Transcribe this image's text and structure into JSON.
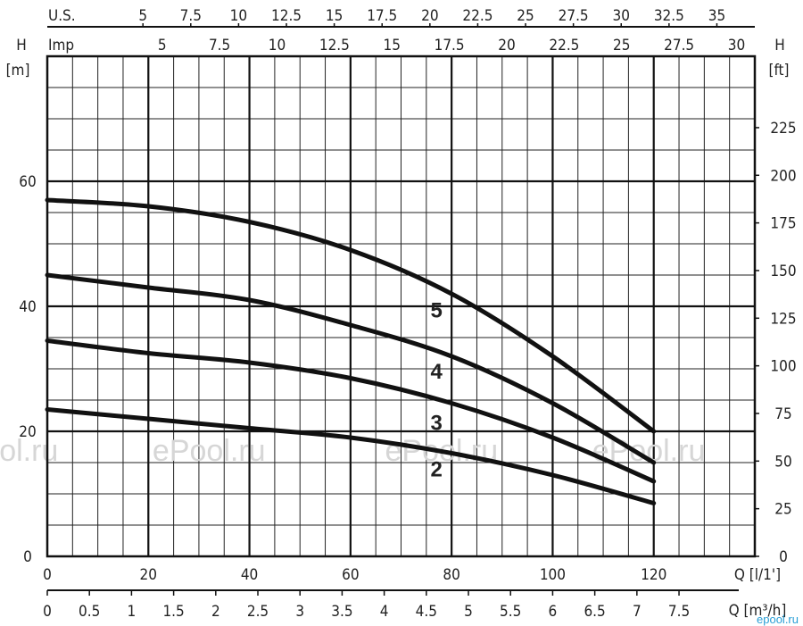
{
  "chart_data": {
    "type": "line",
    "title": "",
    "xlabel": "Q [l/1']",
    "xlim": [
      0,
      140
    ],
    "ylabel_left_symbol": "H",
    "ylabel_left_unit": "[m]",
    "ylim": [
      0,
      80
    ],
    "ylabel_right_symbol": "H",
    "ylabel_right_unit": "[ft]",
    "grid": true,
    "x_ticks": [
      "0",
      "20",
      "40",
      "60",
      "80",
      "100",
      "120"
    ],
    "y_left_ticks": [
      "0",
      "20",
      "40",
      "60"
    ],
    "y_right_ticks": [
      "0",
      "25",
      "50",
      "75",
      "100",
      "125",
      "150",
      "175",
      "200",
      "225"
    ],
    "us_axis": {
      "label": "U.S.",
      "ticks": [
        "5",
        "7.5",
        "10",
        "12.5",
        "15",
        "17.5",
        "20",
        "22.5",
        "25",
        "27.5",
        "30",
        "32.5",
        "35"
      ]
    },
    "imp_axis": {
      "label": "Imp",
      "ticks": [
        "5",
        "7.5",
        "10",
        "12.5",
        "15",
        "17.5",
        "20",
        "22.5",
        "25",
        "27.5",
        "30"
      ]
    },
    "m3h_axis": {
      "label": "Q [m³/h]",
      "ticks": [
        "0",
        "0.5",
        "1",
        "1.5",
        "2",
        "2.5",
        "3",
        "3.5",
        "4",
        "4.5",
        "5",
        "5.5",
        "6",
        "6.5",
        "7",
        "7.5"
      ]
    },
    "series": [
      {
        "name": "2",
        "x": [
          0,
          20,
          40,
          60,
          80,
          100,
          120
        ],
        "y": [
          23.5,
          22,
          20.5,
          19,
          16.5,
          13,
          8.5
        ]
      },
      {
        "name": "3",
        "x": [
          0,
          20,
          40,
          60,
          80,
          100,
          120
        ],
        "y": [
          34.5,
          32.5,
          31,
          28.5,
          24.5,
          19,
          12
        ]
      },
      {
        "name": "4",
        "x": [
          0,
          20,
          40,
          60,
          80,
          100,
          120
        ],
        "y": [
          45,
          43,
          41,
          37,
          32,
          24.5,
          15
        ]
      },
      {
        "name": "5",
        "x": [
          0,
          20,
          40,
          60,
          80,
          100,
          120
        ],
        "y": [
          57,
          56,
          53.5,
          49,
          42,
          32,
          20
        ]
      }
    ]
  },
  "watermarks": [
    "ePool.ru",
    "ePool.ru",
    "ePool.ru",
    "ePool.ru"
  ],
  "corner_watermark": "epool.ru"
}
